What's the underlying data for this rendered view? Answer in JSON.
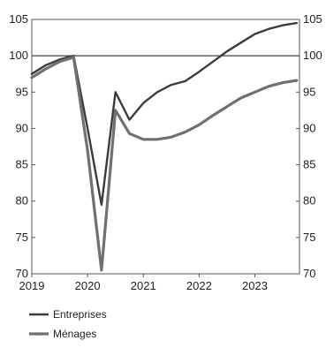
{
  "chart_data": {
    "type": "line",
    "title": "",
    "xlabel": "",
    "ylabel": "",
    "x_ticks": [
      "2019",
      "2020",
      "2021",
      "2022",
      "2023"
    ],
    "y_ticks": [
      "70",
      "75",
      "80",
      "85",
      "90",
      "95",
      "100",
      "105"
    ],
    "y_range": [
      70,
      105
    ],
    "x_range": [
      2019.0,
      2023.8
    ],
    "reference_line": 100,
    "grid": false,
    "legend_position": "bottom-left",
    "series": [
      {
        "name": "Entreprises",
        "color": "#3c3c3c",
        "points": [
          [
            2019.0,
            97.5
          ],
          [
            2019.25,
            98.7
          ],
          [
            2019.5,
            99.5
          ],
          [
            2019.75,
            100.0
          ],
          [
            2020.0,
            90.0
          ],
          [
            2020.25,
            79.5
          ],
          [
            2020.5,
            95.0
          ],
          [
            2020.75,
            91.2
          ],
          [
            2021.0,
            93.5
          ],
          [
            2021.25,
            95.0
          ],
          [
            2021.5,
            96.0
          ],
          [
            2021.75,
            96.5
          ],
          [
            2022.0,
            97.8
          ],
          [
            2022.25,
            99.2
          ],
          [
            2022.5,
            100.6
          ],
          [
            2022.75,
            101.8
          ],
          [
            2023.0,
            103.0
          ],
          [
            2023.25,
            103.7
          ],
          [
            2023.5,
            104.2
          ],
          [
            2023.75,
            104.5
          ]
        ]
      },
      {
        "name": "Ménages",
        "color": "#707070",
        "points": [
          [
            2019.0,
            97.0
          ],
          [
            2019.25,
            98.2
          ],
          [
            2019.5,
            99.2
          ],
          [
            2019.75,
            99.8
          ],
          [
            2020.0,
            87.0
          ],
          [
            2020.25,
            70.5
          ],
          [
            2020.5,
            92.5
          ],
          [
            2020.75,
            89.3
          ],
          [
            2021.0,
            88.5
          ],
          [
            2021.25,
            88.5
          ],
          [
            2021.5,
            88.8
          ],
          [
            2021.75,
            89.5
          ],
          [
            2022.0,
            90.5
          ],
          [
            2022.25,
            91.8
          ],
          [
            2022.5,
            93.0
          ],
          [
            2022.75,
            94.2
          ],
          [
            2023.0,
            95.0
          ],
          [
            2023.25,
            95.8
          ],
          [
            2023.5,
            96.3
          ],
          [
            2023.75,
            96.6
          ]
        ]
      }
    ]
  }
}
